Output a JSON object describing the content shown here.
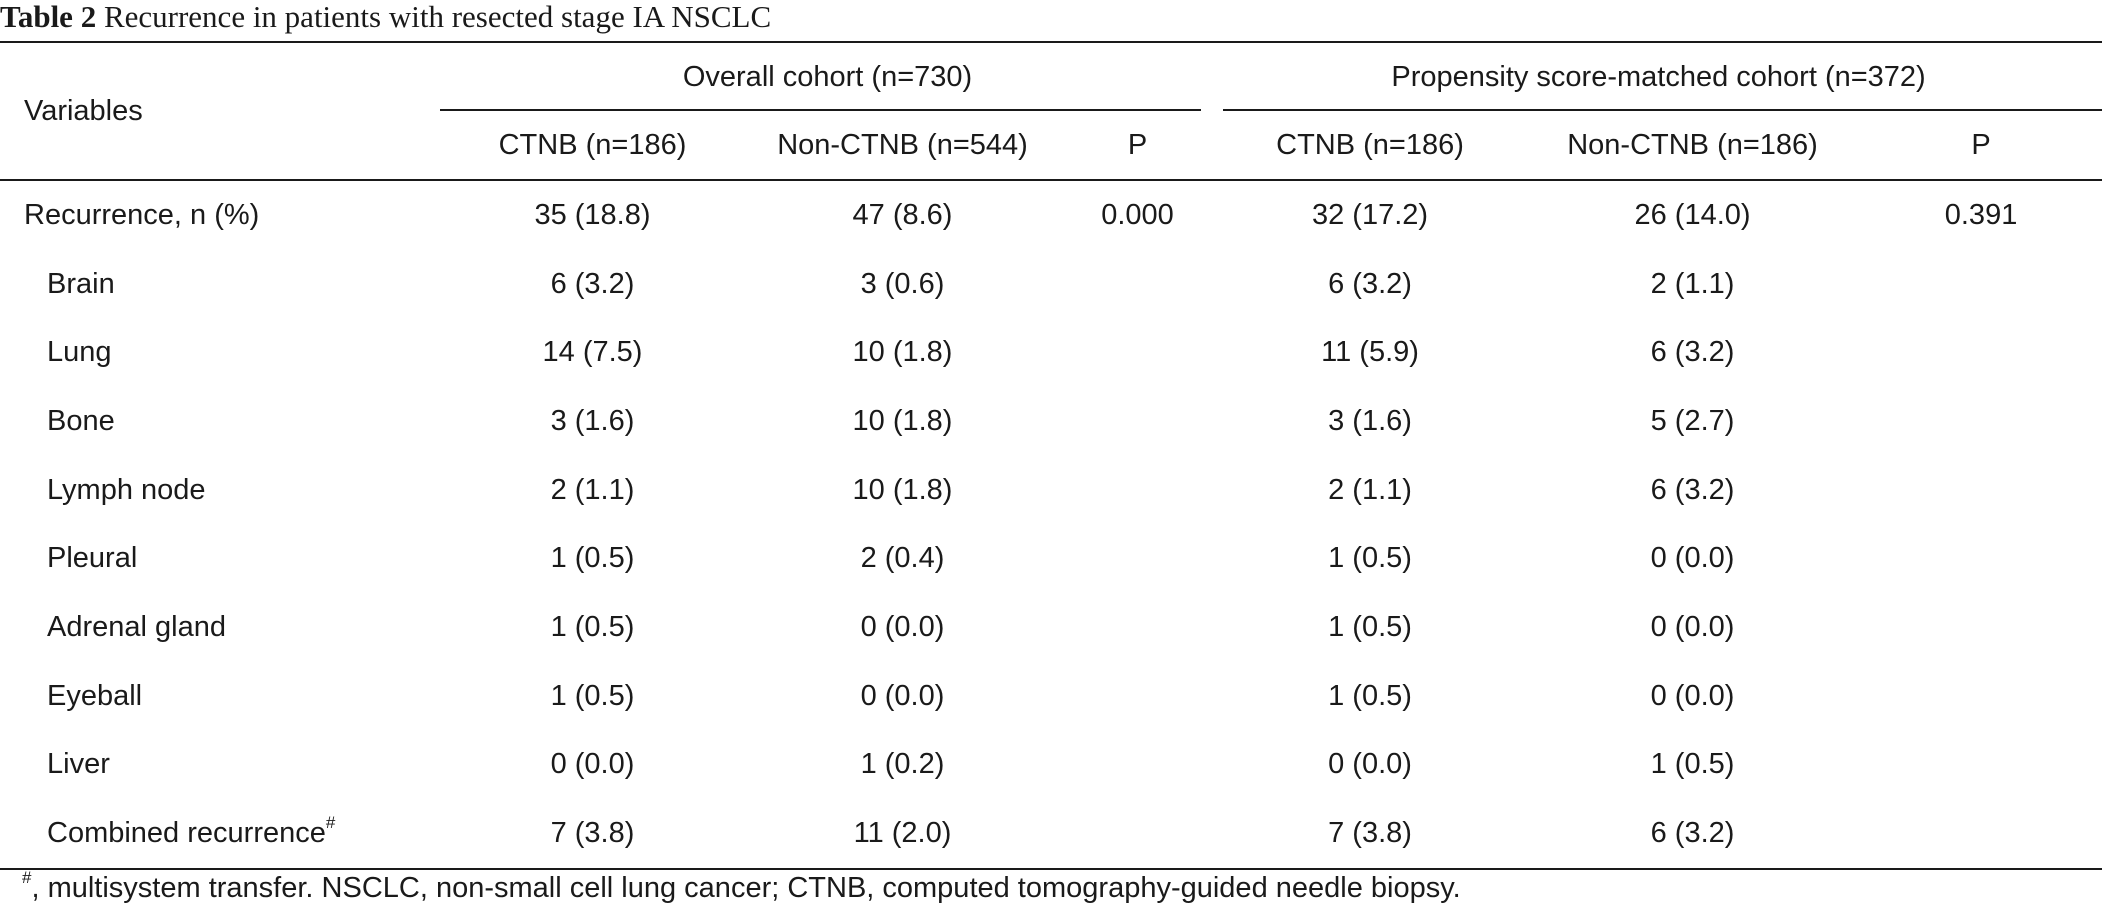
{
  "caption": {
    "label": "Table 2",
    "text": "Recurrence in patients with resected stage IA NSCLC"
  },
  "header": {
    "variables": "Variables",
    "group_overall": "Overall cohort (n=730)",
    "group_matched": "Propensity score-matched cohort (n=372)",
    "columns": [
      "CTNB (n=186)",
      "Non-CTNB (n=544)",
      "P",
      "CTNB (n=186)",
      "Non-CTNB (n=186)",
      "P"
    ]
  },
  "rows": [
    {
      "label": "Recurrence, n (%)",
      "sup": "",
      "cells": [
        "35 (18.8)",
        "47 (8.6)",
        "0.000",
        "32 (17.2)",
        "26 (14.0)",
        "0.391"
      ]
    },
    {
      "label": "Brain",
      "sup": "",
      "cells": [
        "6 (3.2)",
        "3 (0.6)",
        "",
        "6 (3.2)",
        "2 (1.1)",
        ""
      ]
    },
    {
      "label": "Lung",
      "sup": "",
      "cells": [
        "14 (7.5)",
        "10 (1.8)",
        "",
        "11 (5.9)",
        "6 (3.2)",
        ""
      ]
    },
    {
      "label": "Bone",
      "sup": "",
      "cells": [
        "3 (1.6)",
        "10 (1.8)",
        "",
        "3 (1.6)",
        "5 (2.7)",
        ""
      ]
    },
    {
      "label": "Lymph node",
      "sup": "",
      "cells": [
        "2 (1.1)",
        "10 (1.8)",
        "",
        "2 (1.1)",
        "6 (3.2)",
        ""
      ]
    },
    {
      "label": "Pleural",
      "sup": "",
      "cells": [
        "1 (0.5)",
        "2 (0.4)",
        "",
        "1 (0.5)",
        "0 (0.0)",
        ""
      ]
    },
    {
      "label": "Adrenal gland",
      "sup": "",
      "cells": [
        "1 (0.5)",
        "0 (0.0)",
        "",
        "1 (0.5)",
        "0 (0.0)",
        ""
      ]
    },
    {
      "label": "Eyeball",
      "sup": "",
      "cells": [
        "1 (0.5)",
        "0 (0.0)",
        "",
        "1 (0.5)",
        "0 (0.0)",
        ""
      ]
    },
    {
      "label": "Liver",
      "sup": "",
      "cells": [
        "0 (0.0)",
        "1 (0.2)",
        "",
        "0 (0.0)",
        "1 (0.5)",
        ""
      ]
    },
    {
      "label": "Combined recurrence",
      "sup": "#",
      "cells": [
        "7 (3.8)",
        "11 (2.0)",
        "",
        "7 (3.8)",
        "6 (3.2)",
        ""
      ]
    }
  ],
  "footnote": {
    "sup": "#",
    "text": ", multisystem transfer. NSCLC, non-small cell lung cancer; CTNB, computed tomography-guided needle biopsy."
  }
}
